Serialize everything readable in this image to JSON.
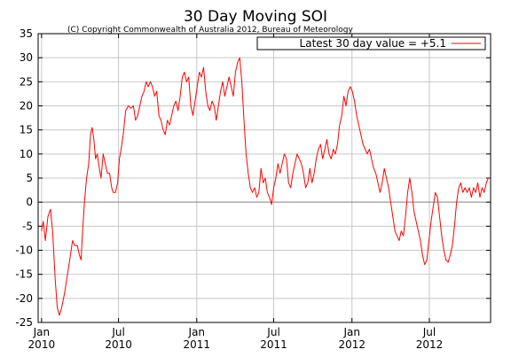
{
  "chart_data": {
    "type": "line",
    "title": "30 Day Moving SOI",
    "copyright": "(C) Copyright Commonwealth of Australia 2012, Bureau of Meteorology",
    "legend": {
      "label": "Latest 30 day value = +5.1",
      "placement": "top-right",
      "color": "#ff0000"
    },
    "ylim": [
      -25,
      35
    ],
    "yticks": [
      -25,
      -20,
      -15,
      -10,
      -5,
      0,
      5,
      10,
      15,
      20,
      25,
      30,
      35
    ],
    "ytick_labels": [
      "-25",
      "-20",
      "-15",
      "-10",
      "-5",
      "0",
      "5",
      "10",
      "15",
      "20",
      "25",
      "30",
      "35"
    ],
    "xlim": [
      "2009-12-24",
      "2012-11-22"
    ],
    "xticks": [
      {
        "date": "2010-01-01",
        "month": "Jan",
        "year": "2010"
      },
      {
        "date": "2010-07-01",
        "month": "Jul",
        "year": "2010"
      },
      {
        "date": "2011-01-01",
        "month": "Jan",
        "year": "2011"
      },
      {
        "date": "2011-07-01",
        "month": "Jul",
        "year": "2011"
      },
      {
        "date": "2012-01-01",
        "month": "Jan",
        "year": "2012"
      },
      {
        "date": "2012-07-01",
        "month": "Jul",
        "year": "2012"
      }
    ],
    "grid": true,
    "zero_line": true,
    "series": [
      {
        "color": "#ff0000",
        "points": [
          [
            "2010-01-01",
            -6
          ],
          [
            "2010-01-05",
            -4
          ],
          [
            "2010-01-10",
            -8
          ],
          [
            "2010-01-16",
            -3
          ],
          [
            "2010-01-22",
            -1.5
          ],
          [
            "2010-01-27",
            -6
          ],
          [
            "2010-02-02",
            -16
          ],
          [
            "2010-02-07",
            -22
          ],
          [
            "2010-02-12",
            -23.5
          ],
          [
            "2010-02-17",
            -22
          ],
          [
            "2010-02-24",
            -19
          ],
          [
            "2010-03-03",
            -15
          ],
          [
            "2010-03-10",
            -11
          ],
          [
            "2010-03-15",
            -8
          ],
          [
            "2010-03-20",
            -9
          ],
          [
            "2010-03-26",
            -9
          ],
          [
            "2010-03-31",
            -11
          ],
          [
            "2010-04-04",
            -12
          ],
          [
            "2010-04-07",
            -7
          ],
          [
            "2010-04-12",
            0
          ],
          [
            "2010-04-17",
            5
          ],
          [
            "2010-04-22",
            8
          ],
          [
            "2010-04-26",
            14
          ],
          [
            "2010-04-30",
            15.5
          ],
          [
            "2010-05-04",
            13
          ],
          [
            "2010-05-08",
            9
          ],
          [
            "2010-05-12",
            10
          ],
          [
            "2010-05-17",
            7
          ],
          [
            "2010-05-21",
            5
          ],
          [
            "2010-05-26",
            10
          ],
          [
            "2010-05-31",
            8
          ],
          [
            "2010-06-05",
            6
          ],
          [
            "2010-06-10",
            6
          ],
          [
            "2010-06-15",
            3
          ],
          [
            "2010-06-19",
            2
          ],
          [
            "2010-06-24",
            2
          ],
          [
            "2010-06-29",
            4
          ],
          [
            "2010-07-03",
            9
          ],
          [
            "2010-07-07",
            11
          ],
          [
            "2010-07-12",
            14
          ],
          [
            "2010-07-18",
            19
          ],
          [
            "2010-07-24",
            20
          ],
          [
            "2010-07-30",
            19.5
          ],
          [
            "2010-08-05",
            20
          ],
          [
            "2010-08-10",
            17
          ],
          [
            "2010-08-15",
            18
          ],
          [
            "2010-08-20",
            20
          ],
          [
            "2010-08-25",
            22
          ],
          [
            "2010-08-30",
            23
          ],
          [
            "2010-09-04",
            25
          ],
          [
            "2010-09-09",
            24
          ],
          [
            "2010-09-14",
            25
          ],
          [
            "2010-09-19",
            24
          ],
          [
            "2010-09-24",
            22
          ],
          [
            "2010-09-29",
            23
          ],
          [
            "2010-10-04",
            18
          ],
          [
            "2010-10-09",
            17
          ],
          [
            "2010-10-14",
            15
          ],
          [
            "2010-10-19",
            14
          ],
          [
            "2010-10-24",
            17
          ],
          [
            "2010-10-29",
            16
          ],
          [
            "2010-11-03",
            18
          ],
          [
            "2010-11-08",
            20
          ],
          [
            "2010-11-13",
            21
          ],
          [
            "2010-11-18",
            19
          ],
          [
            "2010-11-23",
            22
          ],
          [
            "2010-11-28",
            26
          ],
          [
            "2010-12-03",
            27
          ],
          [
            "2010-12-08",
            25
          ],
          [
            "2010-12-13",
            26
          ],
          [
            "2010-12-18",
            20
          ],
          [
            "2010-12-23",
            18
          ],
          [
            "2010-12-28",
            21
          ],
          [
            "2011-01-02",
            24
          ],
          [
            "2011-01-07",
            27
          ],
          [
            "2011-01-12",
            26
          ],
          [
            "2011-01-17",
            28
          ],
          [
            "2011-01-22",
            23
          ],
          [
            "2011-01-27",
            20
          ],
          [
            "2011-02-01",
            19
          ],
          [
            "2011-02-06",
            21
          ],
          [
            "2011-02-11",
            20
          ],
          [
            "2011-02-16",
            17
          ],
          [
            "2011-02-21",
            20
          ],
          [
            "2011-02-26",
            23
          ],
          [
            "2011-03-03",
            25
          ],
          [
            "2011-03-08",
            22
          ],
          [
            "2011-03-13",
            24
          ],
          [
            "2011-03-18",
            26
          ],
          [
            "2011-03-23",
            24
          ],
          [
            "2011-03-28",
            22
          ],
          [
            "2011-04-02",
            27
          ],
          [
            "2011-04-07",
            29
          ],
          [
            "2011-04-12",
            30
          ],
          [
            "2011-04-17",
            25
          ],
          [
            "2011-04-22",
            17
          ],
          [
            "2011-04-27",
            10
          ],
          [
            "2011-05-02",
            6
          ],
          [
            "2011-05-07",
            3
          ],
          [
            "2011-05-12",
            2
          ],
          [
            "2011-05-17",
            3
          ],
          [
            "2011-05-22",
            1
          ],
          [
            "2011-05-27",
            2
          ],
          [
            "2011-06-01",
            7
          ],
          [
            "2011-06-06",
            4
          ],
          [
            "2011-06-11",
            5
          ],
          [
            "2011-06-16",
            2
          ],
          [
            "2011-06-21",
            1
          ],
          [
            "2011-06-26",
            -0.5
          ],
          [
            "2011-07-01",
            3
          ],
          [
            "2011-07-06",
            5
          ],
          [
            "2011-07-11",
            8
          ],
          [
            "2011-07-16",
            6
          ],
          [
            "2011-07-21",
            8
          ],
          [
            "2011-07-26",
            10
          ],
          [
            "2011-07-31",
            9
          ],
          [
            "2011-08-05",
            4
          ],
          [
            "2011-08-10",
            3
          ],
          [
            "2011-08-15",
            6
          ],
          [
            "2011-08-20",
            8
          ],
          [
            "2011-08-25",
            10
          ],
          [
            "2011-08-30",
            9
          ],
          [
            "2011-09-04",
            8
          ],
          [
            "2011-09-09",
            6
          ],
          [
            "2011-09-14",
            3
          ],
          [
            "2011-09-19",
            4
          ],
          [
            "2011-09-24",
            7
          ],
          [
            "2011-09-29",
            4
          ],
          [
            "2011-10-04",
            6
          ],
          [
            "2011-10-09",
            9
          ],
          [
            "2011-10-14",
            11
          ],
          [
            "2011-10-19",
            12
          ],
          [
            "2011-10-24",
            9
          ],
          [
            "2011-10-29",
            11
          ],
          [
            "2011-11-03",
            13
          ],
          [
            "2011-11-08",
            10
          ],
          [
            "2011-11-13",
            9
          ],
          [
            "2011-11-18",
            11
          ],
          [
            "2011-11-23",
            10
          ],
          [
            "2011-11-28",
            12
          ],
          [
            "2011-12-03",
            16
          ],
          [
            "2011-12-08",
            18
          ],
          [
            "2011-12-13",
            22
          ],
          [
            "2011-12-18",
            20
          ],
          [
            "2011-12-23",
            23
          ],
          [
            "2011-12-28",
            24
          ],
          [
            "2012-01-02",
            23
          ],
          [
            "2012-01-07",
            21
          ],
          [
            "2012-01-12",
            18
          ],
          [
            "2012-01-17",
            16
          ],
          [
            "2012-01-22",
            14
          ],
          [
            "2012-01-27",
            12
          ],
          [
            "2012-02-01",
            11
          ],
          [
            "2012-02-06",
            10
          ],
          [
            "2012-02-11",
            11
          ],
          [
            "2012-02-16",
            9
          ],
          [
            "2012-02-21",
            7
          ],
          [
            "2012-02-26",
            6
          ],
          [
            "2012-03-02",
            4
          ],
          [
            "2012-03-07",
            2
          ],
          [
            "2012-03-12",
            4
          ],
          [
            "2012-03-17",
            7
          ],
          [
            "2012-03-22",
            5
          ],
          [
            "2012-03-27",
            3
          ],
          [
            "2012-04-01",
            0
          ],
          [
            "2012-04-06",
            -3
          ],
          [
            "2012-04-11",
            -6
          ],
          [
            "2012-04-16",
            -7
          ],
          [
            "2012-04-21",
            -8
          ],
          [
            "2012-04-26",
            -6
          ],
          [
            "2012-05-01",
            -7
          ],
          [
            "2012-05-06",
            -3
          ],
          [
            "2012-05-11",
            2
          ],
          [
            "2012-05-16",
            5
          ],
          [
            "2012-05-21",
            2
          ],
          [
            "2012-05-26",
            -2
          ],
          [
            "2012-05-31",
            -4
          ],
          [
            "2012-06-05",
            -6
          ],
          [
            "2012-06-10",
            -8
          ],
          [
            "2012-06-15",
            -11
          ],
          [
            "2012-06-20",
            -13
          ],
          [
            "2012-06-25",
            -12
          ],
          [
            "2012-06-30",
            -8
          ],
          [
            "2012-07-05",
            -4
          ],
          [
            "2012-07-10",
            -1
          ],
          [
            "2012-07-15",
            2
          ],
          [
            "2012-07-20",
            1
          ],
          [
            "2012-07-25",
            -3
          ],
          [
            "2012-07-30",
            -7
          ],
          [
            "2012-08-04",
            -10
          ],
          [
            "2012-08-09",
            -12
          ],
          [
            "2012-08-14",
            -12.5
          ],
          [
            "2012-08-19",
            -11
          ],
          [
            "2012-08-24",
            -9
          ],
          [
            "2012-08-29",
            -5
          ],
          [
            "2012-09-03",
            0
          ],
          [
            "2012-09-08",
            3
          ],
          [
            "2012-09-13",
            4
          ],
          [
            "2012-09-18",
            2
          ],
          [
            "2012-09-23",
            3
          ],
          [
            "2012-09-28",
            2
          ],
          [
            "2012-10-03",
            3
          ],
          [
            "2012-10-08",
            1
          ],
          [
            "2012-10-13",
            3
          ],
          [
            "2012-10-18",
            2
          ],
          [
            "2012-10-23",
            4
          ],
          [
            "2012-10-28",
            1
          ],
          [
            "2012-11-02",
            3
          ],
          [
            "2012-11-07",
            2
          ],
          [
            "2012-11-12",
            4
          ],
          [
            "2012-11-17",
            5.1
          ]
        ]
      }
    ]
  }
}
